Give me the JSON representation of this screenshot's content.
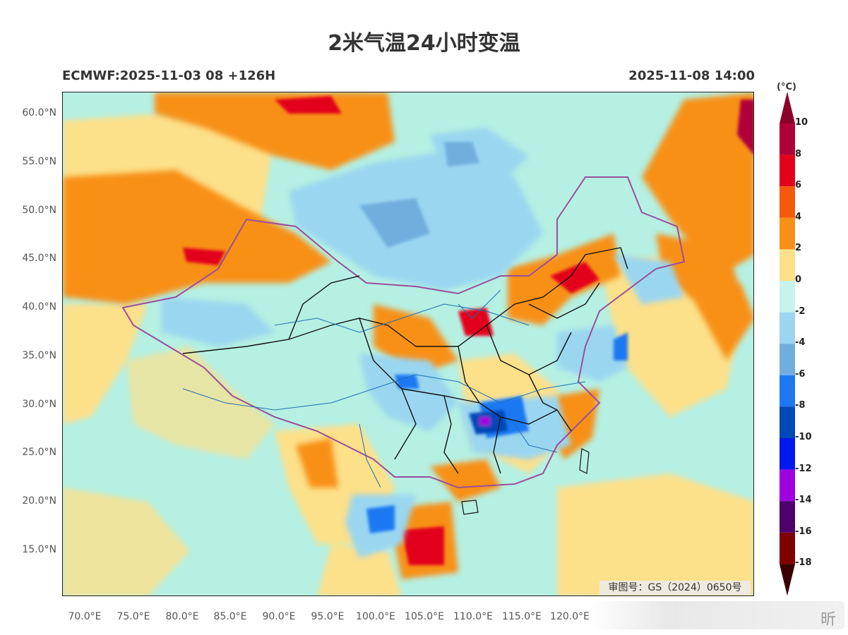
{
  "header": {
    "title": "2米气温24小时变温",
    "model_info": "ECMWF:2025-11-03 08 +126H",
    "valid_time": "2025-11-08 14:00"
  },
  "map": {
    "approval_no": "审图号：GS（2024）0650号",
    "lat_labels": [
      "60.0°N",
      "55.0°N",
      "50.0°N",
      "45.0°N",
      "40.0°N",
      "35.0°N",
      "30.0°N",
      "25.0°N",
      "20.0°N",
      "15.0°N"
    ],
    "lon_labels": [
      "70.0°E",
      "75.0°E",
      "80.0°E",
      "85.0°E",
      "90.0°E",
      "95.0°E",
      "100.0°E",
      "105.0°E",
      "110.0°E",
      "115.0°E",
      "120.0°E"
    ]
  },
  "colorbar": {
    "unit": "(°C)",
    "labels": [
      "10",
      "8",
      "6",
      "4",
      "2",
      "0",
      "-2",
      "-4",
      "-6",
      "-8",
      "-10",
      "-12",
      "-14",
      "-16",
      "-18"
    ],
    "colors": [
      "#b0003a",
      "#e3001b",
      "#f55a0a",
      "#f89018",
      "#fce08a",
      "#c6f4ec",
      "#9ad6f0",
      "#70aede",
      "#1e78f2",
      "#0047b8",
      "#0018ee",
      "#a000e0",
      "#4b006e",
      "#800000"
    ],
    "top_color": "#8b0028",
    "bottom_color": "#3a0000"
  },
  "watermark": {
    "text": "昕"
  }
}
